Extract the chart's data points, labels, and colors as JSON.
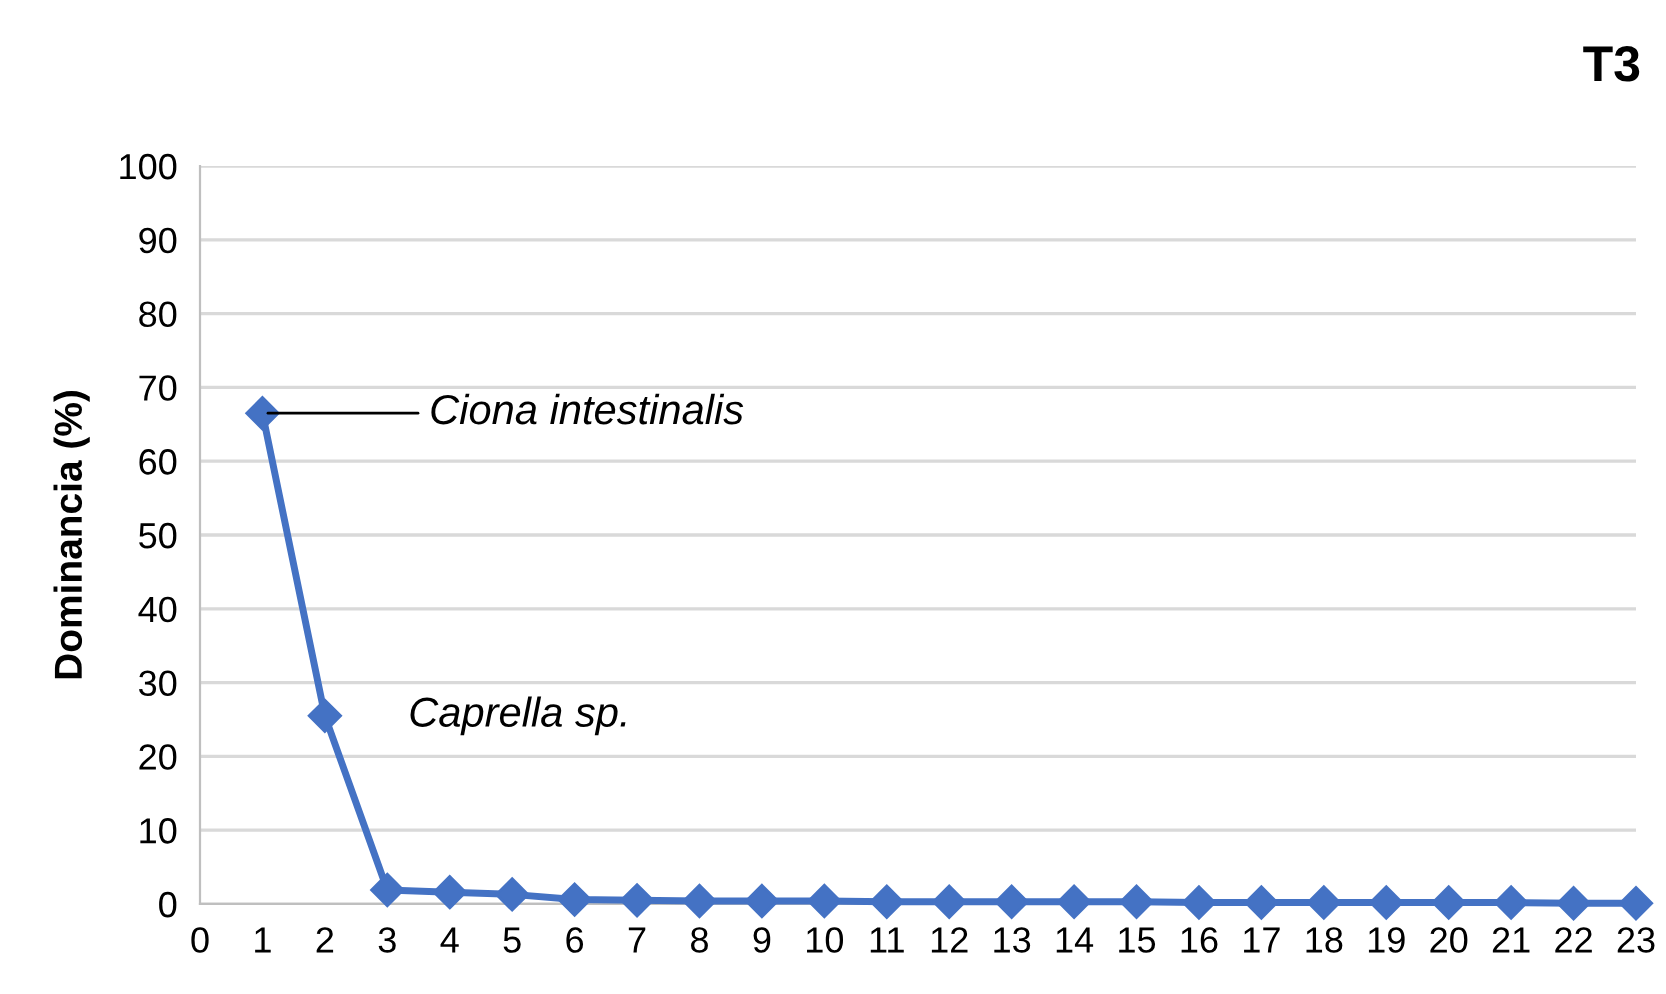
{
  "chart_data": {
    "type": "line",
    "title": "T3",
    "ylabel": "Dominancia (%)",
    "x": [
      1,
      2,
      3,
      4,
      5,
      6,
      7,
      8,
      9,
      10,
      11,
      12,
      13,
      14,
      15,
      16,
      17,
      18,
      19,
      20,
      21,
      22,
      23
    ],
    "series": [
      {
        "color": "#4472c4",
        "values": [
          66.5,
          25.5,
          1.9,
          1.6,
          1.3,
          0.6,
          0.5,
          0.4,
          0.4,
          0.4,
          0.3,
          0.3,
          0.3,
          0.3,
          0.3,
          0.2,
          0.2,
          0.2,
          0.2,
          0.2,
          0.2,
          0.1,
          0.1
        ]
      }
    ],
    "xlim": [
      0,
      23
    ],
    "xticks": [
      0,
      1,
      2,
      3,
      4,
      5,
      6,
      7,
      8,
      9,
      10,
      11,
      12,
      13,
      14,
      15,
      16,
      17,
      18,
      19,
      20,
      21,
      22,
      23
    ],
    "ylim": [
      0,
      100
    ],
    "yticks": [
      0,
      10,
      20,
      30,
      40,
      50,
      60,
      70,
      80,
      90,
      100
    ],
    "grid": "y",
    "marker": "diamond",
    "line_style": "solid",
    "legend": false,
    "annotations": [
      {
        "text": "Ciona intestinalis",
        "x": 1,
        "y": 66.5
      },
      {
        "text": "Caprella sp.",
        "x": 2,
        "y": 25.5
      }
    ]
  }
}
